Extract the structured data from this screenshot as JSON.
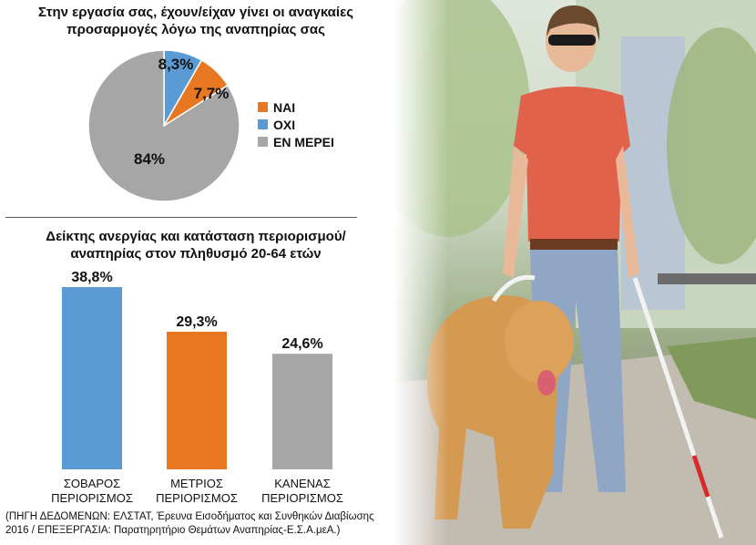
{
  "chart_data": [
    {
      "type": "pie",
      "title": "Στην εργασία σας, έχουν/είχαν γίνει οι αναγκαίες\nπροσαρμογές λόγω της αναπηρίας σας",
      "slices": [
        {
          "label": "ΝΑΙ",
          "value": 7.7,
          "value_label": "7,7%",
          "color": "#e87722"
        },
        {
          "label": "ΟΧΙ",
          "value": 8.3,
          "value_label": "8,3%",
          "color": "#5b9bd5"
        },
        {
          "label": "ΕΝ ΜΕΡΕΙ",
          "value": 84,
          "value_label": "84%",
          "color": "#a6a6a6"
        }
      ],
      "legend_position": "right"
    },
    {
      "type": "bar",
      "title": "Δείκτης ανεργίας και κατάσταση περιορισμού/\nαναπηρίας στον πληθυσμό 20-64 ετών",
      "categories": [
        "ΣΟΒΑΡΟΣ\nΠΕΡΙΟΡΙΣΜΟΣ",
        "ΜΕΤΡΙΟΣ\nΠΕΡΙΟΡΙΣΜΟΣ",
        "ΚΑΝΕΝΑΣ\nΠΕΡΙΟΡΙΣΜΟΣ"
      ],
      "values": [
        38.8,
        29.3,
        24.6
      ],
      "value_labels": [
        "38,8%",
        "29,3%",
        "24,6%"
      ],
      "colors": [
        "#5b9bd5",
        "#e87722",
        "#a6a6a6"
      ]
    }
  ],
  "source": "(ΠΗΓΗ ΔΕΔΟΜΕΝΩΝ: ΕΛΣΤΑΤ, Έρευνα Εισοδήματος και Συνθηκών Διαβίωσης\n2016 / ΕΠΕΞΕΡΓΑΣΙΑ: Παρατηρητήριο Θεμάτων Αναπηρίας-Ε.Σ.Α.μεΑ.)"
}
